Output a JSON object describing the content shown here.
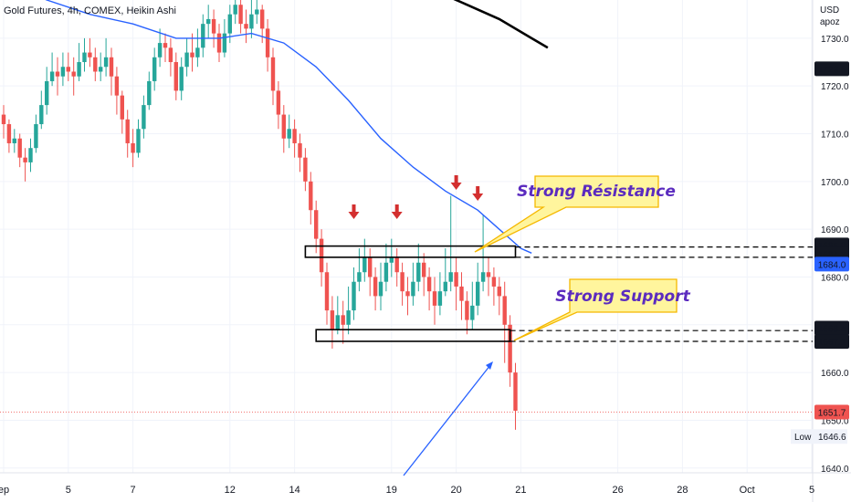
{
  "header": {
    "title": "Gold Futures, 4h, COMEX, Heikin Ashi"
  },
  "price_axis": {
    "currency": "USD",
    "sub": "apoz"
  },
  "colors": {
    "bull": "#26a69a",
    "bear": "#ef5350",
    "ma_blue": "#2962ff",
    "ma_black": "#000000",
    "callout_fill": "#fff59d",
    "callout_stroke": "#f5b800",
    "callout_text": "#5b2bbf",
    "arrow_red": "#d32f2f",
    "current_price": "#ef5350"
  },
  "chart_data": {
    "type": "candlestick",
    "title": "Gold Futures, 4h, COMEX, Heikin Ashi",
    "ylim": [
      1639,
      1738
    ],
    "y_ticks": [
      1640,
      1650,
      1660,
      1670,
      1680,
      1690,
      1700,
      1710,
      1720,
      1730
    ],
    "x_ticks": [
      {
        "label": "ep",
        "i": 0
      },
      {
        "label": "5",
        "i": 12
      },
      {
        "label": "7",
        "i": 24
      },
      {
        "label": "12",
        "i": 42
      },
      {
        "label": "14",
        "i": 54
      },
      {
        "label": "19",
        "i": 72
      },
      {
        "label": "20",
        "i": 84
      },
      {
        "label": "21",
        "i": 96
      },
      {
        "label": "26",
        "i": 114
      },
      {
        "label": "28",
        "i": 126
      },
      {
        "label": "Oct",
        "i": 138
      },
      {
        "label": "5",
        "i": 150
      },
      {
        "label": "",
        "i": 162
      }
    ],
    "candles": [
      [
        1714,
        1712,
        1716,
        1709
      ],
      [
        1712,
        1708,
        1713,
        1706
      ],
      [
        1708,
        1709,
        1711,
        1706
      ],
      [
        1709,
        1705,
        1710,
        1703
      ],
      [
        1705,
        1704,
        1707,
        1700
      ],
      [
        1704,
        1707,
        1709,
        1702
      ],
      [
        1707,
        1712,
        1714,
        1706
      ],
      [
        1712,
        1716,
        1719,
        1711
      ],
      [
        1716,
        1721,
        1724,
        1714
      ],
      [
        1721,
        1723,
        1727,
        1720
      ],
      [
        1723,
        1722,
        1726,
        1718
      ],
      [
        1722,
        1724,
        1727,
        1720
      ],
      [
        1724,
        1723,
        1727,
        1721
      ],
      [
        1723,
        1722,
        1726,
        1718
      ],
      [
        1722,
        1725,
        1729,
        1721
      ],
      [
        1725,
        1727,
        1730,
        1723
      ],
      [
        1727,
        1726,
        1730,
        1724
      ],
      [
        1726,
        1723,
        1728,
        1721
      ],
      [
        1723,
        1724,
        1727,
        1721
      ],
      [
        1724,
        1726,
        1730,
        1722
      ],
      [
        1726,
        1722,
        1728,
        1718
      ],
      [
        1722,
        1718,
        1724,
        1714
      ],
      [
        1718,
        1713,
        1719,
        1710
      ],
      [
        1713,
        1708,
        1715,
        1705
      ],
      [
        1708,
        1706,
        1711,
        1703
      ],
      [
        1706,
        1711,
        1713,
        1705
      ],
      [
        1711,
        1716,
        1718,
        1709
      ],
      [
        1716,
        1721,
        1723,
        1715
      ],
      [
        1721,
        1726,
        1728,
        1719
      ],
      [
        1726,
        1729,
        1732,
        1724
      ],
      [
        1729,
        1728,
        1731,
        1725
      ],
      [
        1728,
        1725,
        1730,
        1722
      ],
      [
        1725,
        1719,
        1727,
        1717
      ],
      [
        1719,
        1724,
        1726,
        1717
      ],
      [
        1724,
        1727,
        1730,
        1722
      ],
      [
        1727,
        1726,
        1731,
        1723
      ],
      [
        1726,
        1728,
        1732,
        1724
      ],
      [
        1728,
        1733,
        1735,
        1726
      ],
      [
        1733,
        1734,
        1737,
        1730
      ],
      [
        1734,
        1731,
        1736,
        1728
      ],
      [
        1731,
        1727,
        1733,
        1725
      ],
      [
        1727,
        1731,
        1734,
        1726
      ],
      [
        1731,
        1735,
        1737,
        1729
      ],
      [
        1735,
        1737,
        1739,
        1733
      ],
      [
        1737,
        1733,
        1738,
        1731
      ],
      [
        1733,
        1732,
        1736,
        1729
      ],
      [
        1732,
        1735,
        1738,
        1730
      ],
      [
        1735,
        1736,
        1739,
        1733
      ],
      [
        1736,
        1732,
        1737,
        1729
      ],
      [
        1732,
        1726,
        1734,
        1723
      ],
      [
        1726,
        1719,
        1728,
        1716
      ],
      [
        1719,
        1714,
        1721,
        1711
      ],
      [
        1714,
        1709,
        1716,
        1706
      ],
      [
        1709,
        1711,
        1714,
        1707
      ],
      [
        1711,
        1708,
        1713,
        1705
      ],
      [
        1708,
        1705,
        1710,
        1702
      ],
      [
        1705,
        1700,
        1707,
        1698
      ],
      [
        1700,
        1694,
        1702,
        1691
      ],
      [
        1694,
        1688,
        1696,
        1685
      ],
      [
        1688,
        1681,
        1690,
        1678
      ],
      [
        1681,
        1673,
        1683,
        1670
      ],
      [
        1673,
        1669,
        1676,
        1665
      ],
      [
        1669,
        1672,
        1676,
        1668
      ],
      [
        1672,
        1670,
        1675,
        1666
      ],
      [
        1670,
        1673,
        1678,
        1668
      ],
      [
        1673,
        1679,
        1682,
        1671
      ],
      [
        1679,
        1681,
        1686,
        1677
      ],
      [
        1681,
        1684,
        1688,
        1679
      ],
      [
        1684,
        1680,
        1686,
        1676
      ],
      [
        1680,
        1676,
        1682,
        1673
      ],
      [
        1676,
        1679,
        1683,
        1673
      ],
      [
        1679,
        1683,
        1687,
        1677
      ],
      [
        1683,
        1684,
        1688,
        1680
      ],
      [
        1684,
        1681,
        1686,
        1678
      ],
      [
        1681,
        1677,
        1683,
        1674
      ],
      [
        1677,
        1676,
        1680,
        1672
      ],
      [
        1676,
        1679,
        1683,
        1674
      ],
      [
        1679,
        1683,
        1687,
        1677
      ],
      [
        1683,
        1680,
        1685,
        1676
      ],
      [
        1680,
        1677,
        1682,
        1673
      ],
      [
        1677,
        1674,
        1680,
        1670
      ],
      [
        1674,
        1677,
        1681,
        1672
      ],
      [
        1677,
        1679,
        1686,
        1676
      ],
      [
        1679,
        1681,
        1697,
        1677
      ],
      [
        1681,
        1678,
        1684,
        1673
      ],
      [
        1678,
        1675,
        1681,
        1671
      ],
      [
        1675,
        1671,
        1677,
        1668
      ],
      [
        1671,
        1674,
        1679,
        1669
      ],
      [
        1674,
        1679,
        1683,
        1672
      ],
      [
        1679,
        1681,
        1693,
        1677
      ],
      [
        1681,
        1680,
        1684,
        1676
      ],
      [
        1680,
        1678,
        1682,
        1674
      ],
      [
        1678,
        1676,
        1680,
        1672
      ],
      [
        1676,
        1670,
        1679,
        1662
      ],
      [
        1670,
        1660,
        1672,
        1657
      ],
      [
        1660,
        1652,
        1662,
        1648
      ]
    ],
    "series": [
      {
        "type": "line",
        "points": [
          [
            0,
            1742
          ],
          [
            8,
            1738
          ],
          [
            16,
            1735
          ],
          [
            24,
            1733
          ],
          [
            32,
            1730
          ],
          [
            40,
            1730
          ],
          [
            46,
            1731
          ],
          [
            52,
            1729
          ],
          [
            58,
            1724
          ],
          [
            64,
            1717
          ],
          [
            70,
            1709
          ],
          [
            76,
            1703
          ],
          [
            82,
            1698
          ],
          [
            88,
            1694
          ],
          [
            92,
            1690
          ],
          [
            94,
            1688
          ],
          [
            96,
            1686
          ],
          [
            98,
            1685
          ]
        ]
      },
      {
        "type": "line",
        "points": [
          [
            70,
            1747
          ],
          [
            78,
            1741
          ],
          [
            86,
            1737
          ],
          [
            92,
            1734
          ],
          [
            98,
            1730
          ],
          [
            101,
            1728
          ]
        ]
      }
    ],
    "resistance_zone": [
      1684.7,
      1685.9
    ],
    "support_zone": [
      1667.1,
      1668.4
    ],
    "current_price": 1651.7,
    "low": 1646.6,
    "price_labels": {
      "top": "1723.6",
      "r_upper": "1685.9",
      "r_lower": "1684.7",
      "ma_value": "1684.0",
      "s_upper": "1668.4",
      "s_lower": "1667.1",
      "current": "1651.7",
      "low_label": "Low",
      "low_value": "1646.6"
    },
    "annotations": {
      "resistance_text": "Strong Résistance",
      "support_text": "Strong Support"
    }
  }
}
